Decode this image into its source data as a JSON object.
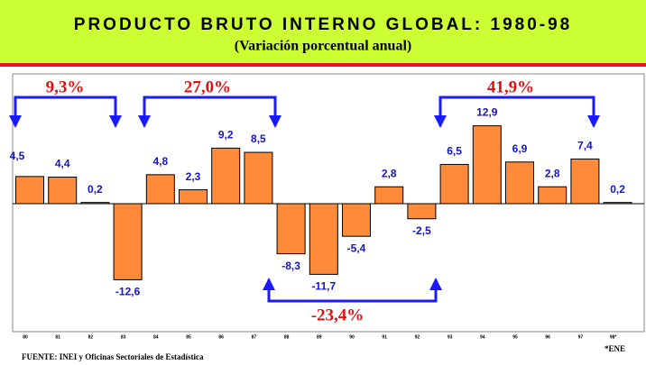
{
  "chart_data": {
    "type": "bar",
    "title": "PRODUCTO BRUTO INTERNO GLOBAL: 1980-98",
    "subtitle": "(Variación porcentual anual)",
    "categories": [
      "80",
      "81",
      "82",
      "83",
      "84",
      "85",
      "86",
      "87",
      "88",
      "89",
      "90",
      "91",
      "92",
      "93",
      "94",
      "95",
      "96",
      "97",
      "98*"
    ],
    "values": [
      4.5,
      4.4,
      0.2,
      -12.6,
      4.8,
      2.3,
      9.2,
      8.5,
      -8.3,
      -11.7,
      -5.4,
      2.8,
      -2.5,
      6.5,
      12.9,
      6.9,
      2.8,
      7.4,
      0.2
    ],
    "value_labels": [
      "4,5",
      "4,4",
      "0,2",
      "-12,6",
      "4,8",
      "2,3",
      "9,2",
      "8,5",
      "-8,3",
      "-11,7",
      "-5,4",
      "2,8",
      "-2,5",
      "6,5",
      "12,9",
      "6,9",
      "2,8",
      "7,4",
      "0,2"
    ],
    "color": "#ff8a3a",
    "annotations": [
      "9,3%",
      "27,0%",
      "41,9%",
      "-23,4%"
    ],
    "source": "FUENTE: INEI y Oficinas Sectoriales de Estadística",
    "note": "*ENE"
  }
}
